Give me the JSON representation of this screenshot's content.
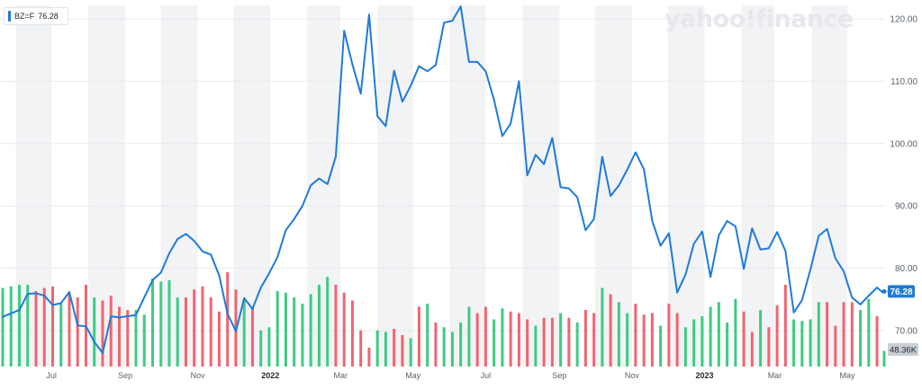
{
  "watermark": "yahoo!finance",
  "legend": {
    "symbol": "BZ=F",
    "value": "76.28"
  },
  "last_price_badge": "76.28",
  "volume_badge": "48.36K",
  "colors": {
    "line": "#1f7bd6",
    "volume_up": "#3ecb83",
    "volume_down": "#f06570",
    "shade": "#f2f3f5",
    "grid": "#e8eaed",
    "axis_text": "#5b636a",
    "badge_price_bg": "#1f7bd6",
    "badge_volume_bg": "#c9ced4"
  },
  "chart_data": {
    "type": "line",
    "title": "",
    "y_ticks": [
      "120.00",
      "110.00",
      "100.00",
      "90.00",
      "80.00",
      "70.00"
    ],
    "ylim": [
      64,
      123
    ],
    "x_ticks": [
      "Jul",
      "Sep",
      "Nov",
      "2022",
      "Mar",
      "May",
      "Jul",
      "Sep",
      "Nov",
      "2023",
      "Mar",
      "May"
    ],
    "x_range": [
      "2021-05-21",
      "2023-06-01"
    ],
    "grid": true,
    "legend_position": "top-left",
    "series": [
      {
        "name": "BZ=F",
        "points": [
          [
            "2021-05-21",
            72.2
          ],
          [
            "2021-06-04",
            73.3
          ],
          [
            "2021-06-11",
            75.9
          ],
          [
            "2021-06-18",
            76.0
          ],
          [
            "2021-06-25",
            75.6
          ],
          [
            "2021-07-02",
            74.1
          ],
          [
            "2021-07-09",
            74.4
          ],
          [
            "2021-07-16",
            76.2
          ],
          [
            "2021-07-23",
            70.8
          ],
          [
            "2021-07-30",
            70.7
          ],
          [
            "2021-08-06",
            68.2
          ],
          [
            "2021-08-13",
            66.4
          ],
          [
            "2021-08-20",
            72.3
          ],
          [
            "2021-08-27",
            72.1
          ],
          [
            "2021-09-03",
            72.3
          ],
          [
            "2021-09-10",
            72.5
          ],
          [
            "2021-09-17",
            75.3
          ],
          [
            "2021-09-24",
            78.1
          ],
          [
            "2021-10-01",
            79.3
          ],
          [
            "2021-10-08",
            82.4
          ],
          [
            "2021-10-15",
            84.7
          ],
          [
            "2021-10-22",
            85.5
          ],
          [
            "2021-10-29",
            84.4
          ],
          [
            "2021-11-05",
            82.7
          ],
          [
            "2021-11-12",
            82.2
          ],
          [
            "2021-11-19",
            78.8
          ],
          [
            "2021-11-26",
            72.7
          ],
          [
            "2021-12-03",
            69.9
          ],
          [
            "2021-12-10",
            75.2
          ],
          [
            "2021-12-17",
            73.5
          ],
          [
            "2021-12-24",
            76.9
          ],
          [
            "2021-12-31",
            79.2
          ],
          [
            "2022-01-07",
            81.8
          ],
          [
            "2022-01-14",
            86.1
          ],
          [
            "2022-01-21",
            87.9
          ],
          [
            "2022-01-28",
            90.0
          ],
          [
            "2022-02-04",
            93.3
          ],
          [
            "2022-02-11",
            94.4
          ],
          [
            "2022-02-18",
            93.5
          ],
          [
            "2022-02-25",
            97.9
          ],
          [
            "2022-03-04",
            118.1
          ],
          [
            "2022-03-11",
            112.7
          ],
          [
            "2022-03-18",
            108.0
          ],
          [
            "2022-03-25",
            120.7
          ],
          [
            "2022-04-01",
            104.4
          ],
          [
            "2022-04-08",
            102.8
          ],
          [
            "2022-04-15",
            111.7
          ],
          [
            "2022-04-22",
            106.7
          ],
          [
            "2022-04-29",
            109.3
          ],
          [
            "2022-05-06",
            112.4
          ],
          [
            "2022-05-13",
            111.6
          ],
          [
            "2022-05-20",
            112.6
          ],
          [
            "2022-05-27",
            119.4
          ],
          [
            "2022-06-03",
            119.7
          ],
          [
            "2022-06-10",
            122.0
          ],
          [
            "2022-06-17",
            113.1
          ],
          [
            "2022-06-24",
            113.1
          ],
          [
            "2022-07-01",
            111.6
          ],
          [
            "2022-07-08",
            107.0
          ],
          [
            "2022-07-15",
            101.2
          ],
          [
            "2022-07-22",
            103.2
          ],
          [
            "2022-07-29",
            110.0
          ],
          [
            "2022-08-05",
            94.9
          ],
          [
            "2022-08-12",
            98.2
          ],
          [
            "2022-08-19",
            96.7
          ],
          [
            "2022-08-26",
            100.9
          ],
          [
            "2022-09-02",
            93.0
          ],
          [
            "2022-09-09",
            92.8
          ],
          [
            "2022-09-16",
            91.4
          ],
          [
            "2022-09-23",
            86.1
          ],
          [
            "2022-09-30",
            87.9
          ],
          [
            "2022-10-07",
            97.9
          ],
          [
            "2022-10-14",
            91.6
          ],
          [
            "2022-10-21",
            93.3
          ],
          [
            "2022-10-28",
            95.8
          ],
          [
            "2022-11-04",
            98.6
          ],
          [
            "2022-11-11",
            95.9
          ],
          [
            "2022-11-18",
            87.6
          ],
          [
            "2022-11-25",
            83.6
          ],
          [
            "2022-12-02",
            85.6
          ],
          [
            "2022-12-09",
            76.1
          ],
          [
            "2022-12-16",
            79.0
          ],
          [
            "2022-12-23",
            83.9
          ],
          [
            "2022-12-30",
            85.9
          ],
          [
            "2023-01-06",
            78.6
          ],
          [
            "2023-01-13",
            85.3
          ],
          [
            "2023-01-20",
            87.6
          ],
          [
            "2023-01-27",
            86.7
          ],
          [
            "2023-02-03",
            79.9
          ],
          [
            "2023-02-10",
            86.4
          ],
          [
            "2023-02-17",
            83.0
          ],
          [
            "2023-02-24",
            83.2
          ],
          [
            "2023-03-03",
            85.8
          ],
          [
            "2023-03-10",
            82.8
          ],
          [
            "2023-03-17",
            72.9
          ],
          [
            "2023-03-24",
            74.9
          ],
          [
            "2023-03-31",
            79.8
          ],
          [
            "2023-04-07",
            85.2
          ],
          [
            "2023-04-14",
            86.3
          ],
          [
            "2023-04-21",
            81.6
          ],
          [
            "2023-04-28",
            79.5
          ],
          [
            "2023-05-05",
            75.3
          ],
          [
            "2023-05-12",
            74.2
          ],
          [
            "2023-05-19",
            75.6
          ],
          [
            "2023-05-26",
            76.9
          ],
          [
            "2023-05-31",
            76.1
          ],
          [
            "2023-06-01",
            76.28
          ]
        ]
      }
    ],
    "volume": {
      "name": "volume",
      "bars": [
        [
          "2021-05-21",
          0.5,
          "up"
        ],
        [
          "2021-05-28",
          0.51,
          "up"
        ],
        [
          "2021-06-04",
          0.52,
          "up"
        ],
        [
          "2021-06-11",
          0.52,
          "up"
        ],
        [
          "2021-06-18",
          0.48,
          "down"
        ],
        [
          "2021-06-25",
          0.5,
          "down"
        ],
        [
          "2021-07-02",
          0.51,
          "down"
        ],
        [
          "2021-07-09",
          0.4,
          "up"
        ],
        [
          "2021-07-16",
          0.46,
          "down"
        ],
        [
          "2021-07-23",
          0.44,
          "down"
        ],
        [
          "2021-07-30",
          0.52,
          "down"
        ],
        [
          "2021-08-06",
          0.44,
          "up"
        ],
        [
          "2021-08-13",
          0.42,
          "down"
        ],
        [
          "2021-08-20",
          0.45,
          "down"
        ],
        [
          "2021-08-27",
          0.38,
          "down"
        ],
        [
          "2021-09-03",
          0.36,
          "down"
        ],
        [
          "2021-09-10",
          0.36,
          "up"
        ],
        [
          "2021-09-17",
          0.33,
          "up"
        ],
        [
          "2021-09-24",
          0.56,
          "up"
        ],
        [
          "2021-10-01",
          0.54,
          "up"
        ],
        [
          "2021-10-08",
          0.55,
          "up"
        ],
        [
          "2021-10-15",
          0.44,
          "up"
        ],
        [
          "2021-10-22",
          0.44,
          "down"
        ],
        [
          "2021-10-29",
          0.49,
          "down"
        ],
        [
          "2021-11-05",
          0.51,
          "down"
        ],
        [
          "2021-11-12",
          0.44,
          "down"
        ],
        [
          "2021-11-19",
          0.35,
          "down"
        ],
        [
          "2021-11-26",
          0.6,
          "down"
        ],
        [
          "2021-12-03",
          0.49,
          "down"
        ],
        [
          "2021-12-10",
          0.43,
          "up"
        ],
        [
          "2021-12-17",
          0.38,
          "down"
        ],
        [
          "2021-12-24",
          0.23,
          "up"
        ],
        [
          "2021-12-31",
          0.25,
          "up"
        ],
        [
          "2022-01-07",
          0.48,
          "up"
        ],
        [
          "2022-01-14",
          0.47,
          "up"
        ],
        [
          "2022-01-21",
          0.44,
          "up"
        ],
        [
          "2022-01-28",
          0.4,
          "up"
        ],
        [
          "2022-02-04",
          0.46,
          "up"
        ],
        [
          "2022-02-11",
          0.52,
          "up"
        ],
        [
          "2022-02-18",
          0.57,
          "up"
        ],
        [
          "2022-02-25",
          0.52,
          "down"
        ],
        [
          "2022-03-04",
          0.47,
          "down"
        ],
        [
          "2022-03-11",
          0.42,
          "down"
        ],
        [
          "2022-03-18",
          0.23,
          "down"
        ],
        [
          "2022-03-25",
          0.12,
          "down"
        ],
        [
          "2022-04-01",
          0.23,
          "up"
        ],
        [
          "2022-04-08",
          0.22,
          "up"
        ],
        [
          "2022-04-15",
          0.24,
          "down"
        ],
        [
          "2022-04-22",
          0.2,
          "down"
        ],
        [
          "2022-04-29",
          0.18,
          "up"
        ],
        [
          "2022-05-06",
          0.38,
          "down"
        ],
        [
          "2022-05-13",
          0.4,
          "up"
        ],
        [
          "2022-05-20",
          0.28,
          "down"
        ],
        [
          "2022-05-27",
          0.25,
          "up"
        ],
        [
          "2022-06-03",
          0.22,
          "up"
        ],
        [
          "2022-06-10",
          0.28,
          "up"
        ],
        [
          "2022-06-17",
          0.38,
          "up"
        ],
        [
          "2022-06-24",
          0.34,
          "down"
        ],
        [
          "2022-07-01",
          0.38,
          "down"
        ],
        [
          "2022-07-08",
          0.3,
          "up"
        ],
        [
          "2022-07-15",
          0.37,
          "up"
        ],
        [
          "2022-07-22",
          0.35,
          "down"
        ],
        [
          "2022-07-29",
          0.34,
          "down"
        ],
        [
          "2022-08-05",
          0.3,
          "down"
        ],
        [
          "2022-08-12",
          0.26,
          "up"
        ],
        [
          "2022-08-19",
          0.31,
          "down"
        ],
        [
          "2022-08-26",
          0.31,
          "down"
        ],
        [
          "2022-09-02",
          0.34,
          "up"
        ],
        [
          "2022-09-09",
          0.31,
          "down"
        ],
        [
          "2022-09-16",
          0.28,
          "up"
        ],
        [
          "2022-09-23",
          0.36,
          "down"
        ],
        [
          "2022-09-30",
          0.34,
          "down"
        ],
        [
          "2022-10-07",
          0.5,
          "up"
        ],
        [
          "2022-10-14",
          0.46,
          "down"
        ],
        [
          "2022-10-21",
          0.41,
          "up"
        ],
        [
          "2022-10-28",
          0.34,
          "up"
        ],
        [
          "2022-11-04",
          0.4,
          "down"
        ],
        [
          "2022-11-11",
          0.33,
          "down"
        ],
        [
          "2022-11-18",
          0.34,
          "down"
        ],
        [
          "2022-11-25",
          0.26,
          "up"
        ],
        [
          "2022-12-02",
          0.4,
          "down"
        ],
        [
          "2022-12-09",
          0.34,
          "down"
        ],
        [
          "2022-12-16",
          0.25,
          "up"
        ],
        [
          "2022-12-23",
          0.3,
          "up"
        ],
        [
          "2022-12-30",
          0.32,
          "up"
        ],
        [
          "2023-01-06",
          0.38,
          "up"
        ],
        [
          "2023-01-13",
          0.41,
          "up"
        ],
        [
          "2023-01-20",
          0.28,
          "up"
        ],
        [
          "2023-01-27",
          0.43,
          "up"
        ],
        [
          "2023-02-03",
          0.35,
          "down"
        ],
        [
          "2023-02-10",
          0.22,
          "down"
        ],
        [
          "2023-02-17",
          0.36,
          "up"
        ],
        [
          "2023-02-24",
          0.25,
          "down"
        ],
        [
          "2023-03-03",
          0.39,
          "down"
        ],
        [
          "2023-03-10",
          0.52,
          "down"
        ],
        [
          "2023-03-17",
          0.3,
          "up"
        ],
        [
          "2023-03-24",
          0.29,
          "up"
        ],
        [
          "2023-03-31",
          0.3,
          "up"
        ],
        [
          "2023-04-07",
          0.41,
          "up"
        ],
        [
          "2023-04-14",
          0.41,
          "down"
        ],
        [
          "2023-04-21",
          0.26,
          "down"
        ],
        [
          "2023-04-28",
          0.41,
          "down"
        ],
        [
          "2023-05-05",
          0.41,
          "down"
        ],
        [
          "2023-05-12",
          0.36,
          "up"
        ],
        [
          "2023-05-19",
          0.43,
          "up"
        ],
        [
          "2023-05-26",
          0.32,
          "down"
        ],
        [
          "2023-06-01",
          0.1,
          "up"
        ]
      ]
    }
  }
}
